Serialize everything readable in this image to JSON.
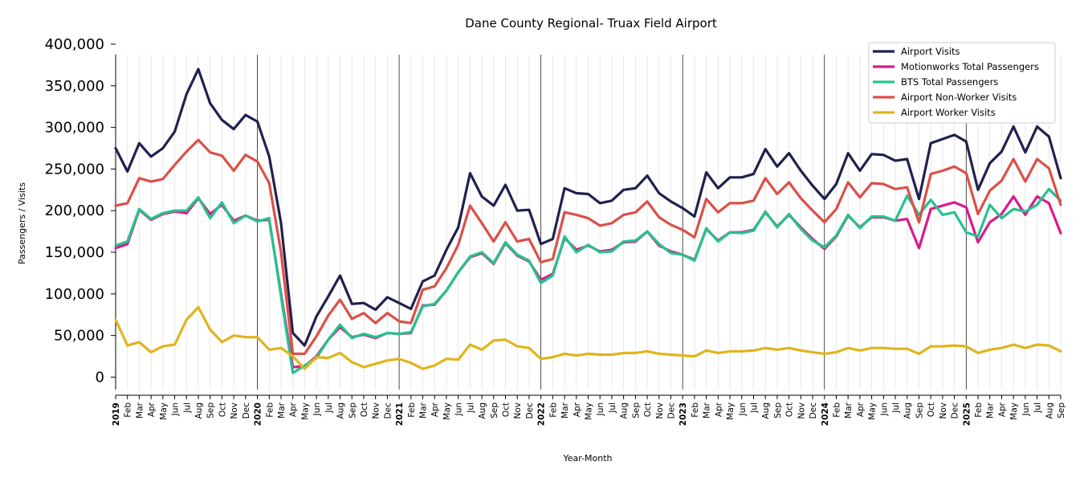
{
  "chart_data": {
    "type": "line",
    "title": "Dane County Regional- Truax Field Airport",
    "xlabel": "Year-Month",
    "ylabel": "Passengers / Visits",
    "ylim": [
      -15000,
      400000
    ],
    "yticks": [
      0,
      50000,
      100000,
      150000,
      200000,
      250000,
      300000,
      350000,
      400000
    ],
    "ytick_labels": [
      "0",
      "50,000",
      "100,000",
      "150,000",
      "200,000",
      "250,000",
      "300,000",
      "350,000",
      "400,000"
    ],
    "grid": "vertical monthly gridlines, darker line at each January",
    "legend_position": "top-right",
    "x": [
      "2019-01",
      "2019-02",
      "2019-03",
      "2019-04",
      "2019-05",
      "2019-06",
      "2019-07",
      "2019-08",
      "2019-09",
      "2019-10",
      "2019-11",
      "2019-12",
      "2020-01",
      "2020-02",
      "2020-03",
      "2020-04",
      "2020-05",
      "2020-06",
      "2020-07",
      "2020-08",
      "2020-09",
      "2020-10",
      "2020-11",
      "2020-12",
      "2021-01",
      "2021-02",
      "2021-03",
      "2021-04",
      "2021-05",
      "2021-06",
      "2021-07",
      "2021-08",
      "2021-09",
      "2021-10",
      "2021-11",
      "2021-12",
      "2022-01",
      "2022-02",
      "2022-03",
      "2022-04",
      "2022-05",
      "2022-06",
      "2022-07",
      "2022-08",
      "2022-09",
      "2022-10",
      "2022-11",
      "2022-12",
      "2023-01",
      "2023-02",
      "2023-03",
      "2023-04",
      "2023-05",
      "2023-06",
      "2023-07",
      "2023-08",
      "2023-09",
      "2023-10",
      "2023-11",
      "2023-12",
      "2024-01",
      "2024-02",
      "2024-03",
      "2024-04",
      "2024-05",
      "2024-06",
      "2024-07",
      "2024-08",
      "2024-09",
      "2024-10",
      "2024-11",
      "2024-12",
      "2025-01",
      "2025-02",
      "2025-03",
      "2025-04",
      "2025-05",
      "2025-06",
      "2025-07",
      "2025-08",
      "2025-09"
    ],
    "x_tick_labels": [
      "2019",
      "Feb",
      "Mar",
      "Apr",
      "May",
      "Jun",
      "Jul",
      "Aug",
      "Sep",
      "Oct",
      "Nov",
      "Dec",
      "2020",
      "Feb",
      "Mar",
      "Apr",
      "May",
      "Jun",
      "Jul",
      "Aug",
      "Sep",
      "Oct",
      "Nov",
      "Dec",
      "2021",
      "Feb",
      "Mar",
      "Apr",
      "May",
      "Jun",
      "Jul",
      "Aug",
      "Sep",
      "Oct",
      "Nov",
      "Dec",
      "2022",
      "Feb",
      "Mar",
      "Apr",
      "May",
      "Jun",
      "Jul",
      "Aug",
      "Sep",
      "Oct",
      "Nov",
      "Dec",
      "2023",
      "Feb",
      "Mar",
      "Apr",
      "May",
      "Jun",
      "Jul",
      "Aug",
      "Sep",
      "Oct",
      "Nov",
      "Dec",
      "2024",
      "Feb",
      "Mar",
      "Apr",
      "May",
      "Jun",
      "Jul",
      "Aug",
      "Sep",
      "Oct",
      "Nov",
      "Dec",
      "2025",
      "Feb",
      "Mar",
      "Apr",
      "May",
      "Jun",
      "Jul",
      "Aug",
      "Sep"
    ],
    "series": [
      {
        "name": "Airport Visits",
        "color": "#20214f",
        "values": [
          275000,
          247000,
          281000,
          265000,
          275000,
          295000,
          340000,
          370000,
          329000,
          309000,
          298000,
          315000,
          307000,
          265000,
          185000,
          53000,
          38000,
          73000,
          97000,
          122000,
          88000,
          89000,
          81000,
          96000,
          89000,
          82000,
          115000,
          122000,
          153000,
          180000,
          245000,
          217000,
          206000,
          231000,
          200000,
          201000,
          160000,
          166000,
          227000,
          221000,
          220000,
          209000,
          212000,
          225000,
          227000,
          242000,
          221000,
          211000,
          203000,
          193000,
          246000,
          227000,
          240000,
          240000,
          244000,
          274000,
          253000,
          269000,
          248000,
          230000,
          214000,
          232000,
          269000,
          248000,
          268000,
          267000,
          260000,
          262000,
          214000,
          281000,
          286000,
          291000,
          283000,
          225000,
          257000,
          271000,
          301000,
          270000,
          301000,
          289000,
          239000
        ]
      },
      {
        "name": "Motionworks Total Passengers",
        "color": "#d81b8a",
        "values": [
          155000,
          160000,
          201000,
          189000,
          196000,
          199000,
          197000,
          215000,
          196000,
          207000,
          188000,
          194000,
          188000,
          189000,
          100000,
          12000,
          13000,
          25000,
          45000,
          60000,
          48000,
          51000,
          47000,
          53000,
          52000,
          53000,
          86000,
          87000,
          104000,
          126000,
          144000,
          149000,
          136000,
          161000,
          146000,
          139000,
          117000,
          124000,
          167000,
          153000,
          158000,
          151000,
          153000,
          162000,
          163000,
          175000,
          158000,
          151000,
          147000,
          141000,
          178000,
          164000,
          174000,
          174000,
          177000,
          198000,
          181000,
          195000,
          180000,
          166000,
          154000,
          169000,
          194000,
          180000,
          192000,
          192000,
          188000,
          190000,
          155000,
          202000,
          206000,
          210000,
          204000,
          162000,
          186000,
          196000,
          217000,
          195000,
          217000,
          209000,
          173000
        ]
      },
      {
        "name": "BTS Total Passengers",
        "color": "#26c28e",
        "values": [
          158000,
          163000,
          202000,
          190000,
          197000,
          200000,
          200000,
          216000,
          191000,
          210000,
          185000,
          194000,
          187000,
          191000,
          97000,
          5000,
          14000,
          23000,
          45000,
          63000,
          47000,
          52000,
          48000,
          53000,
          52000,
          54000,
          85000,
          88000,
          104000,
          126000,
          145000,
          150000,
          137000,
          162000,
          147000,
          140000,
          113000,
          122000,
          169000,
          150000,
          159000,
          150000,
          151000,
          163000,
          164000,
          175000,
          160000,
          149000,
          147000,
          140000,
          179000,
          163000,
          174000,
          173000,
          176000,
          199000,
          180000,
          196000,
          178000,
          164000,
          156000,
          170000,
          195000,
          179000,
          193000,
          193000,
          188000,
          218000,
          195000,
          213000,
          195000,
          198000,
          174000,
          169000,
          207000,
          191000,
          202000,
          199000,
          207000,
          226000,
          212000
        ]
      },
      {
        "name": "Airport Non-Worker Visits",
        "color": "#db5048",
        "values": [
          206000,
          209000,
          239000,
          235000,
          238000,
          255000,
          271000,
          285000,
          270000,
          266000,
          248000,
          267000,
          259000,
          233000,
          150000,
          28000,
          28000,
          49000,
          74000,
          93000,
          70000,
          77000,
          65000,
          77000,
          67000,
          65000,
          105000,
          109000,
          131000,
          159000,
          206000,
          185000,
          163000,
          186000,
          163000,
          166000,
          138000,
          142000,
          198000,
          195000,
          191000,
          182000,
          185000,
          195000,
          198000,
          211000,
          192000,
          183000,
          177000,
          168000,
          214000,
          198000,
          209000,
          209000,
          212000,
          239000,
          220000,
          234000,
          215000,
          200000,
          186000,
          202000,
          234000,
          216000,
          233000,
          232000,
          226000,
          228000,
          186000,
          244000,
          248000,
          253000,
          245000,
          196000,
          224000,
          236000,
          262000,
          235000,
          262000,
          251000,
          207000
        ]
      },
      {
        "name": "Airport Worker Visits",
        "color": "#e0b41c",
        "values": [
          69000,
          38000,
          42000,
          30000,
          37000,
          39000,
          69000,
          84000,
          57000,
          42000,
          50000,
          48000,
          48000,
          33000,
          35000,
          25000,
          10000,
          24000,
          23000,
          29000,
          18000,
          12000,
          16000,
          20000,
          22000,
          17000,
          10000,
          14000,
          22000,
          21000,
          39000,
          33000,
          44000,
          45000,
          37000,
          35000,
          22000,
          24000,
          28000,
          26000,
          28000,
          27000,
          27000,
          29000,
          29000,
          31000,
          28000,
          27000,
          26000,
          25000,
          32000,
          29000,
          31000,
          31000,
          32000,
          35000,
          33000,
          35000,
          32000,
          30000,
          28000,
          30000,
          35000,
          32000,
          35000,
          35000,
          34000,
          34000,
          28000,
          37000,
          37000,
          38000,
          37000,
          29000,
          33000,
          35000,
          39000,
          35000,
          39000,
          38000,
          31000
        ]
      }
    ]
  }
}
